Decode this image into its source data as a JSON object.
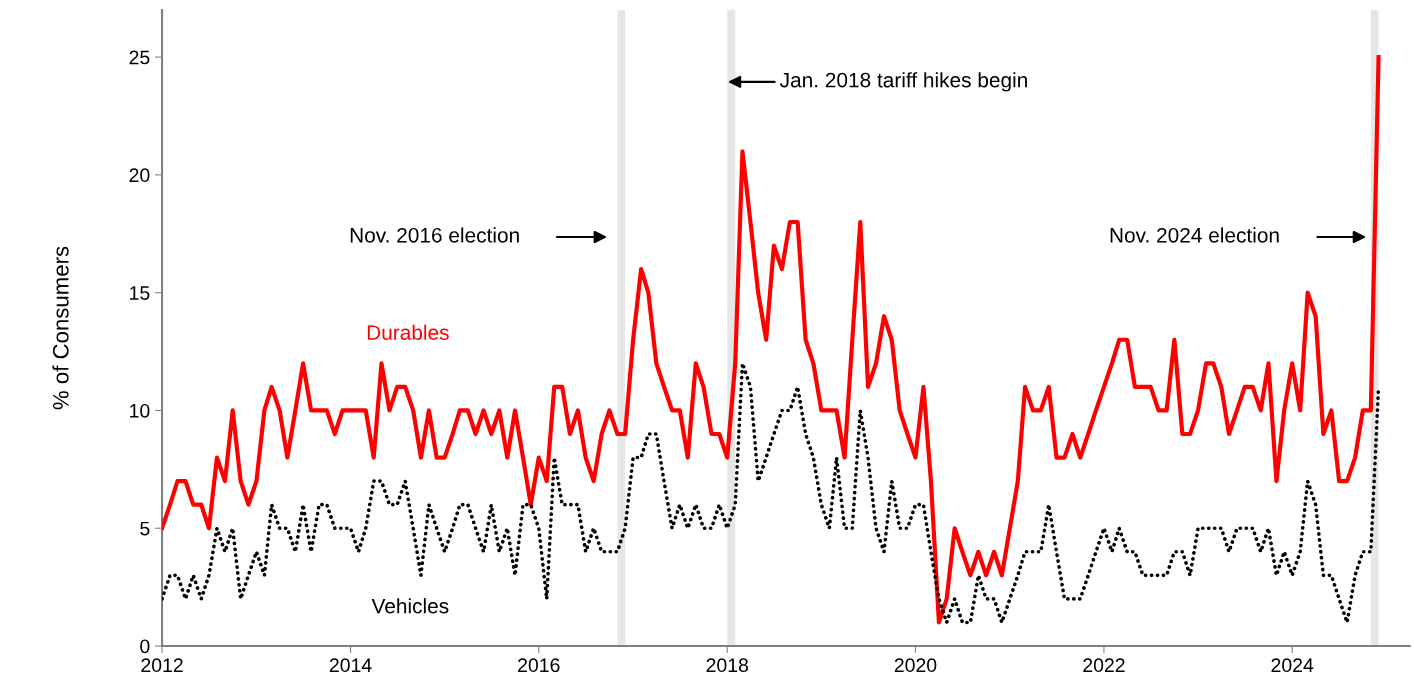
{
  "chart_data": {
    "type": "line",
    "ylabel": "% of Consumers",
    "x": [
      "2012-01",
      "2012-02",
      "2012-03",
      "2012-04",
      "2012-05",
      "2012-06",
      "2012-07",
      "2012-08",
      "2012-09",
      "2012-10",
      "2012-11",
      "2012-12",
      "2013-01",
      "2013-02",
      "2013-03",
      "2013-04",
      "2013-05",
      "2013-06",
      "2013-07",
      "2013-08",
      "2013-09",
      "2013-10",
      "2013-11",
      "2013-12",
      "2014-01",
      "2014-02",
      "2014-03",
      "2014-04",
      "2014-05",
      "2014-06",
      "2014-07",
      "2014-08",
      "2014-09",
      "2014-10",
      "2014-11",
      "2014-12",
      "2015-01",
      "2015-02",
      "2015-03",
      "2015-04",
      "2015-05",
      "2015-06",
      "2015-07",
      "2015-08",
      "2015-09",
      "2015-10",
      "2015-11",
      "2015-12",
      "2016-01",
      "2016-02",
      "2016-03",
      "2016-04",
      "2016-05",
      "2016-06",
      "2016-07",
      "2016-08",
      "2016-09",
      "2016-10",
      "2016-11",
      "2016-12",
      "2017-01",
      "2017-02",
      "2017-03",
      "2017-04",
      "2017-05",
      "2017-06",
      "2017-07",
      "2017-08",
      "2017-09",
      "2017-10",
      "2017-11",
      "2017-12",
      "2018-01",
      "2018-02",
      "2018-03",
      "2018-04",
      "2018-05",
      "2018-06",
      "2018-07",
      "2018-08",
      "2018-09",
      "2018-10",
      "2018-11",
      "2018-12",
      "2019-01",
      "2019-02",
      "2019-03",
      "2019-04",
      "2019-05",
      "2019-06",
      "2019-07",
      "2019-08",
      "2019-09",
      "2019-10",
      "2019-11",
      "2019-12",
      "2020-01",
      "2020-02",
      "2020-03",
      "2020-04",
      "2020-05",
      "2020-06",
      "2020-07",
      "2020-08",
      "2020-09",
      "2020-10",
      "2020-11",
      "2020-12",
      "2021-01",
      "2021-02",
      "2021-03",
      "2021-04",
      "2021-05",
      "2021-06",
      "2021-07",
      "2021-08",
      "2021-09",
      "2021-10",
      "2021-11",
      "2021-12",
      "2022-01",
      "2022-02",
      "2022-03",
      "2022-04",
      "2022-05",
      "2022-06",
      "2022-07",
      "2022-08",
      "2022-09",
      "2022-10",
      "2022-11",
      "2022-12",
      "2023-01",
      "2023-02",
      "2023-03",
      "2023-04",
      "2023-05",
      "2023-06",
      "2023-07",
      "2023-08",
      "2023-09",
      "2023-10",
      "2023-11",
      "2023-12",
      "2024-01",
      "2024-02",
      "2024-03",
      "2024-04",
      "2024-05",
      "2024-06",
      "2024-07",
      "2024-08",
      "2024-09",
      "2024-10",
      "2024-11",
      "2024-12"
    ],
    "series": [
      {
        "name": "Durables",
        "color": "#ff0000",
        "line_style": "solid",
        "values": [
          5,
          6,
          7,
          7,
          6,
          6,
          5,
          8,
          7,
          10,
          7,
          6,
          7,
          10,
          11,
          10,
          8,
          10,
          12,
          10,
          10,
          10,
          9,
          10,
          10,
          10,
          10,
          8,
          12,
          10,
          11,
          11,
          10,
          8,
          10,
          8,
          8,
          9,
          10,
          10,
          9,
          10,
          9,
          10,
          8,
          10,
          8,
          6,
          8,
          7,
          11,
          11,
          9,
          10,
          8,
          7,
          9,
          10,
          9,
          9,
          13,
          16,
          15,
          12,
          11,
          10,
          10,
          8,
          12,
          11,
          9,
          9,
          8,
          12,
          21,
          18,
          15,
          13,
          17,
          16,
          18,
          18,
          13,
          12,
          10,
          10,
          10,
          8,
          13,
          18,
          11,
          12,
          14,
          13,
          10,
          9,
          8,
          11,
          7,
          1,
          2,
          5,
          4,
          3,
          4,
          3,
          4,
          3,
          5,
          7,
          11,
          10,
          10,
          11,
          8,
          8,
          9,
          8,
          9,
          10,
          11,
          12,
          13,
          13,
          11,
          11,
          11,
          10,
          10,
          13,
          9,
          9,
          10,
          12,
          12,
          11,
          9,
          10,
          11,
          11,
          10,
          12,
          7,
          10,
          12,
          10,
          15,
          14,
          9,
          10,
          7,
          7,
          8,
          10,
          10,
          25
        ]
      },
      {
        "name": "Vehicles",
        "color": "#000000",
        "line_style": "dotted",
        "values": [
          2,
          3,
          3,
          2,
          3,
          2,
          3,
          5,
          4,
          5,
          2,
          3,
          4,
          3,
          6,
          5,
          5,
          4,
          6,
          4,
          6,
          6,
          5,
          5,
          5,
          4,
          5,
          7,
          7,
          6,
          6,
          7,
          5,
          3,
          6,
          5,
          4,
          5,
          6,
          6,
          5,
          4,
          6,
          4,
          5,
          3,
          6,
          6,
          5,
          2,
          8,
          6,
          6,
          6,
          4,
          5,
          4,
          4,
          4,
          5,
          8,
          8,
          9,
          9,
          7,
          5,
          6,
          5,
          6,
          5,
          5,
          6,
          5,
          6,
          12,
          11,
          7,
          8,
          9,
          10,
          10,
          11,
          9,
          8,
          6,
          5,
          8,
          5,
          5,
          10,
          8,
          5,
          4,
          7,
          5,
          5,
          6,
          6,
          4,
          2,
          1,
          2,
          1,
          1,
          3,
          2,
          2,
          1,
          2,
          3,
          4,
          4,
          4,
          6,
          4,
          2,
          2,
          2,
          3,
          4,
          5,
          4,
          5,
          4,
          4,
          3,
          3,
          3,
          3,
          4,
          4,
          3,
          5,
          5,
          5,
          5,
          4,
          5,
          5,
          5,
          4,
          5,
          3,
          4,
          3,
          4,
          7,
          6,
          3,
          3,
          2,
          1,
          3,
          4,
          4,
          11
        ]
      }
    ],
    "xlim": [
      "2012-01",
      "2025-04"
    ],
    "xticks": [
      "2012",
      "2014",
      "2016",
      "2018",
      "2020",
      "2022",
      "2024"
    ],
    "ylim": [
      0,
      27
    ],
    "yticks": [
      0,
      5,
      10,
      15,
      20,
      25
    ],
    "bands": [
      {
        "axis": "x",
        "from": "2016-11",
        "to": "2016-12",
        "color": "#e6e6e6"
      },
      {
        "axis": "x",
        "from": "2018-01",
        "to": "2018-02",
        "color": "#e6e6e6"
      },
      {
        "axis": "x",
        "from": "2024-11",
        "to": "2024-12",
        "color": "#e6e6e6"
      }
    ],
    "annotations": [
      "Nov. 2016 election",
      "Jan. 2018 tariff hikes begin",
      "Nov. 2024 election"
    ]
  }
}
